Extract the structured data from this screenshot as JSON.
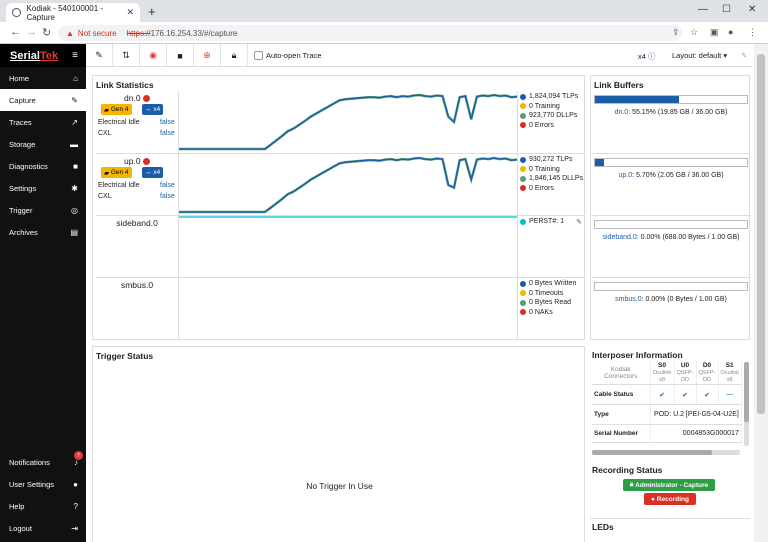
{
  "browser": {
    "tab_title": "Kodiak - 540100001 - Capture",
    "security_label": "Not secure",
    "url_scheme": "https://",
    "url_rest": "176.16.254.33/#/capture"
  },
  "sidebar": {
    "logo_part1": "Serial",
    "logo_part2": "Tek",
    "items": [
      {
        "label": "Home",
        "icon": "home-icon"
      },
      {
        "label": "Capture",
        "icon": "wrench-icon"
      },
      {
        "label": "Traces",
        "icon": "chart-icon"
      },
      {
        "label": "Storage",
        "icon": "drive-icon"
      },
      {
        "label": "Diagnostics",
        "icon": "truck-icon"
      },
      {
        "label": "Settings",
        "icon": "gear-icon"
      },
      {
        "label": "Trigger",
        "icon": "target-icon"
      },
      {
        "label": "Archives",
        "icon": "archive-icon"
      }
    ],
    "bottom_items": [
      {
        "label": "Notifications",
        "icon": "bell-icon",
        "badge": "7"
      },
      {
        "label": "User Settings",
        "icon": "user-icon"
      },
      {
        "label": "Help",
        "icon": "help-icon"
      },
      {
        "label": "Logout",
        "icon": "logout-icon"
      }
    ]
  },
  "toolbar": {
    "auto_open_label": "Auto-open Trace",
    "lanes_label": "x4",
    "layout_label": "Layout: default"
  },
  "link_stats": {
    "title": "Link Statistics",
    "rows": [
      {
        "name": "dn.0",
        "gen": "Gen 4",
        "lanes": "x4",
        "electrical_idle_label": "Electrical Idle",
        "electrical_idle": "false",
        "cxl_label": "CXL",
        "cxl": "false",
        "legend": [
          "1,824,094 TLPs",
          "0 Training",
          "923,770 DLLPs",
          "0 Errors"
        ]
      },
      {
        "name": "up.0",
        "gen": "Gen 4",
        "lanes": "x4",
        "electrical_idle_label": "Electrical Idle",
        "electrical_idle": "false",
        "cxl_label": "CXL",
        "cxl": "false",
        "legend": [
          "930,272 TLPs",
          "0 Training",
          "1,846,145 DLLPs",
          "0 Errors"
        ]
      },
      {
        "name": "sideband.0",
        "legend": [
          "PERST#: 1"
        ]
      },
      {
        "name": "smbus.0",
        "legend": [
          "0 Bytes Written",
          "0 Timeouts",
          "0 Bytes Read",
          "0 NAKs"
        ]
      }
    ],
    "colors": {
      "tlp": "#1a5ea8",
      "training": "#f4b400",
      "dllp": "#5a9a7a",
      "errors": "#d93025",
      "perst": "#00bcd4"
    }
  },
  "chart_data": [
    {
      "type": "line",
      "series": [
        {
          "values": [
            0,
            0,
            0,
            0,
            0,
            0,
            0,
            0,
            0,
            0,
            0,
            0,
            0,
            0,
            0,
            0,
            0.08,
            0.16,
            0.24,
            0.33,
            0.38,
            0.45,
            0.52,
            0.6,
            0.66,
            0.72,
            0.78,
            0.84,
            0.9,
            0.92,
            0.93,
            0.94,
            0.95,
            0.96,
            0.96,
            0.95,
            0.97,
            0.98,
            0.96,
            0.98,
            0.97,
            0.99,
            1,
            0.98,
            0.97,
            0.99,
            0.98,
            0.6,
            0.5,
            0.96,
            0.98,
            0.55,
            0.97,
            0.99,
            0.98,
            1,
            0.98,
            0.99,
            0.96,
            0.97
          ]
        }
      ],
      "ylim": [
        0,
        1
      ]
    },
    {
      "type": "line",
      "series": [
        {
          "values": [
            0,
            0,
            0,
            0,
            0,
            0,
            0,
            0,
            0,
            0,
            0,
            0,
            0,
            0,
            0,
            0,
            0.08,
            0.16,
            0.24,
            0.33,
            0.38,
            0.45,
            0.52,
            0.6,
            0.66,
            0.72,
            0.78,
            0.84,
            0.9,
            0.92,
            0.93,
            0.94,
            0.95,
            0.96,
            0.96,
            0.95,
            0.97,
            0.98,
            0.96,
            0.98,
            0.97,
            0.99,
            1,
            0.98,
            0.97,
            0.99,
            0.98,
            0.5,
            0.45,
            0.96,
            0.98,
            0.6,
            0.97,
            0.99,
            0.98,
            1,
            0.98,
            0.99,
            0.96,
            0.97
          ]
        }
      ],
      "ylim": [
        0,
        1
      ]
    },
    {
      "type": "line",
      "series": [
        {
          "values": [
            1,
            1
          ]
        }
      ],
      "ylim": [
        0,
        1
      ]
    }
  ],
  "buffers": {
    "title": "Link Buffers",
    "rows": [
      {
        "name": "dn.0",
        "text": ": 55.15% (19.85 GB / 36.00 GB)",
        "fill": 0.5515
      },
      {
        "name": "up.0",
        "text": ": 5.70% (2.05 GB / 36.00 GB)",
        "fill": 0.057
      },
      {
        "name": "sideband.0",
        "text": ": 0.00% (688.00 Bytes / 1.00 GB)",
        "fill": 0
      },
      {
        "name": "smbus.0",
        "text": ": 0.00% (0 Bytes / 1.00 GB)",
        "fill": 0
      }
    ]
  },
  "trigger": {
    "title": "Trigger Status",
    "message": "No Trigger In Use"
  },
  "interposer": {
    "title": "Interposer Information",
    "connectors_label": "Kodiak Connectors",
    "columns": [
      {
        "id": "S0",
        "sub": "Oculink x8"
      },
      {
        "id": "U0",
        "sub": "QSFP-DD"
      },
      {
        "id": "D0",
        "sub": "QSFP-DD"
      },
      {
        "id": "S1",
        "sub": "Oculink x8"
      }
    ],
    "cable_status_label": "Cable Status",
    "type_label": "Type",
    "type_value": "POD: U.2 [PEI-G5-04-U2E]",
    "serial_label": "Serial Number",
    "serial_value": "0004853G000017"
  },
  "recording": {
    "title": "Recording Status",
    "admin_label": "Administrator - Capture",
    "recording_label": "Recording"
  },
  "leds": {
    "title": "LEDs"
  }
}
